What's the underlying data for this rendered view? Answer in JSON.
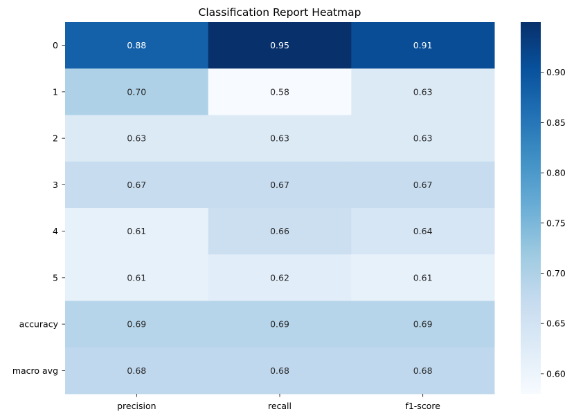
{
  "chart_data": {
    "type": "heatmap",
    "title": "Classification Report Heatmap",
    "xlabel": "",
    "ylabel": "",
    "columns": [
      "precision",
      "recall",
      "f1-score"
    ],
    "rows": [
      "0",
      "1",
      "2",
      "3",
      "4",
      "5",
      "accuracy",
      "macro avg"
    ],
    "values": [
      [
        0.88,
        0.95,
        0.91
      ],
      [
        0.7,
        0.58,
        0.63
      ],
      [
        0.63,
        0.63,
        0.63
      ],
      [
        0.67,
        0.67,
        0.67
      ],
      [
        0.61,
        0.66,
        0.64
      ],
      [
        0.61,
        0.62,
        0.61
      ],
      [
        0.69,
        0.69,
        0.69
      ],
      [
        0.68,
        0.68,
        0.68
      ]
    ],
    "value_format": "0.00",
    "colormap": "Blues",
    "color_range": [
      0.58,
      0.95
    ],
    "colorbar": {
      "ticks": [
        "0.60",
        "0.65",
        "0.70",
        "0.75",
        "0.80",
        "0.85",
        "0.90"
      ],
      "position": "right"
    },
    "grid": false
  }
}
